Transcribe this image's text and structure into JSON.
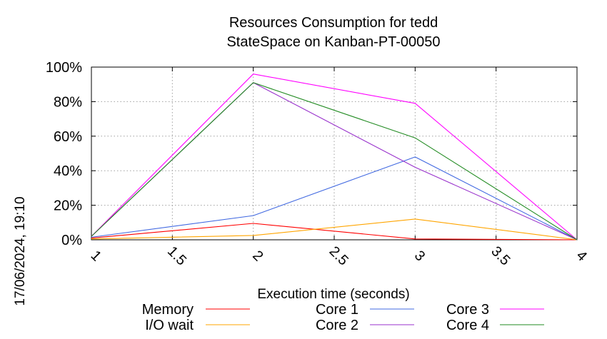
{
  "chart_data": {
    "type": "line",
    "title": "Resources Consumption for tedd",
    "subtitle": "StateSpace on Kanban-PT-00050",
    "xlabel": "Execution time (seconds)",
    "ylabel": "",
    "timestamp": "17/06/2024, 19:10",
    "xlim": [
      1,
      4
    ],
    "ylim": [
      0,
      100
    ],
    "x_ticks": [
      "1",
      "1.5",
      "2",
      "2.5",
      "3",
      "3.5",
      "4"
    ],
    "y_ticks": [
      "0%",
      "20%",
      "40%",
      "60%",
      "80%",
      "100%"
    ],
    "grid": true,
    "legend_position": "bottom",
    "x": [
      1,
      2,
      3,
      4
    ],
    "series": [
      {
        "name": "Memory",
        "color": "#ff0000",
        "values": [
          1,
          9.5,
          0.5,
          0
        ]
      },
      {
        "name": "I/O wait",
        "color": "#ffa500",
        "values": [
          0.5,
          2.5,
          12,
          0
        ]
      },
      {
        "name": "Core 1",
        "color": "#4169e1",
        "values": [
          1.5,
          14,
          48,
          0
        ]
      },
      {
        "name": "Core 2",
        "color": "#9932cc",
        "values": [
          2,
          91,
          42,
          0
        ]
      },
      {
        "name": "Core 3",
        "color": "#ff00ff",
        "values": [
          2,
          96,
          79,
          0
        ]
      },
      {
        "name": "Core 4",
        "color": "#228b22",
        "values": [
          2,
          91,
          59,
          0
        ]
      }
    ]
  }
}
